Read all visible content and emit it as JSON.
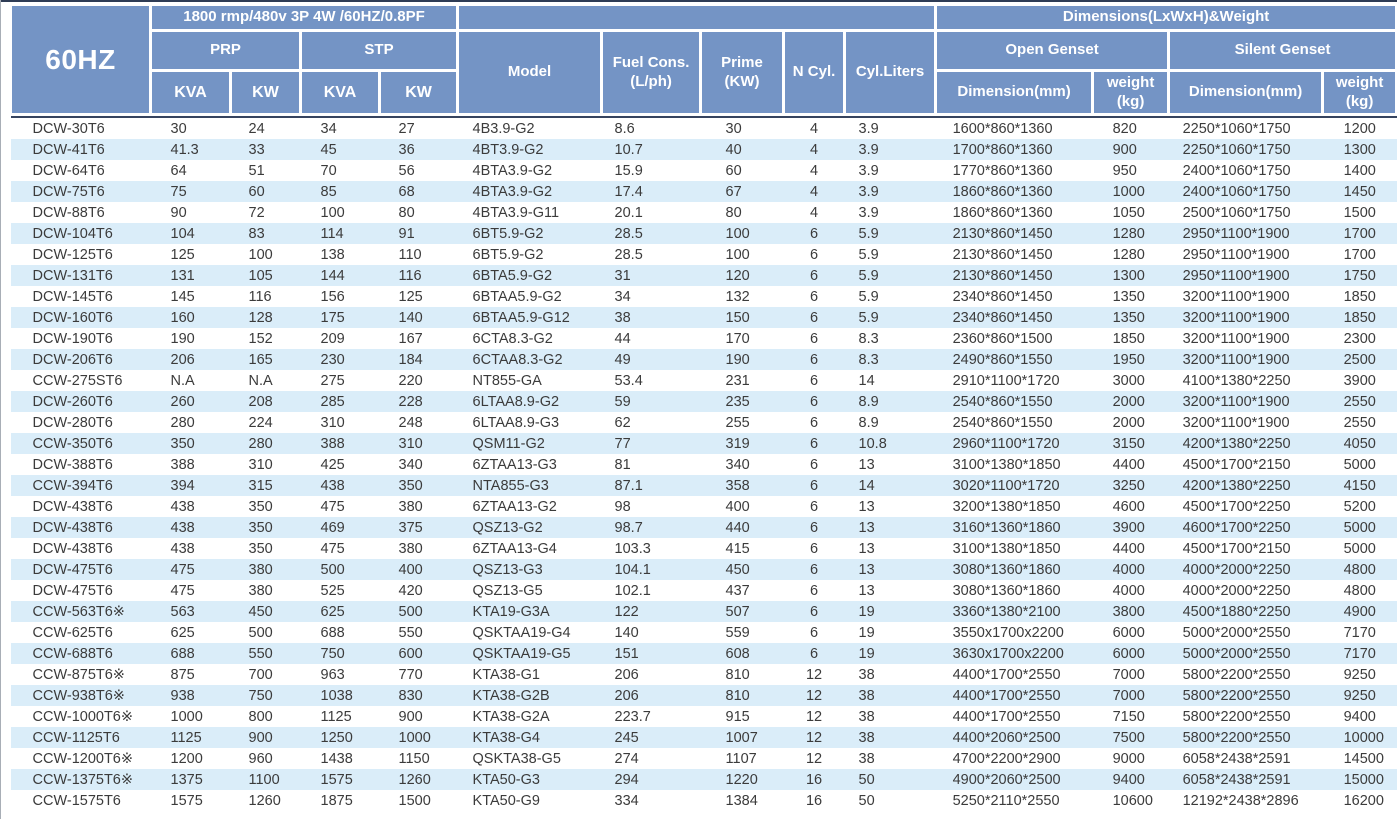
{
  "header": {
    "freq": "60HZ",
    "rating": "1800 rmp/480v 3P 4W /60HZ/0.8PF",
    "dims": "Dimensions(LxWxH)&Weight",
    "prp": "PRP",
    "stp": "STP",
    "open_genset": "Open Genset",
    "silent_genset": "Silent Genset",
    "kva": "KVA",
    "kw": "KW",
    "model": "Model",
    "fuel": "Fuel Cons.\n(L/ph)",
    "prime": "Prime\n(KW)",
    "ncyl": "N Cyl.",
    "cyl_liters": "Cyl.Liters",
    "dimension_mm": "Dimension(mm)",
    "weight_kg": "weight\n(kg)"
  },
  "colors": {
    "header_bg": "#7494C5",
    "stripe": "#DAEDF9",
    "divider": "#36445F",
    "text": "#3B3B3B"
  },
  "columns": [
    "model-name",
    "prp-kva",
    "prp-kw",
    "stp-kva",
    "stp-kw",
    "engine-model",
    "fuel-cons",
    "prime-kw",
    "n-cyl",
    "cyl-liters",
    "open-dimension",
    "open-weight",
    "silent-dimension",
    "silent-weight"
  ],
  "rows": [
    [
      "DCW-30T6",
      "30",
      "24",
      "34",
      "27",
      "4B3.9-G2",
      "8.6",
      "30",
      "4",
      "3.9",
      "1600*860*1360",
      "820",
      "2250*1060*1750",
      "1200"
    ],
    [
      "DCW-41T6",
      "41.3",
      "33",
      "45",
      "36",
      "4BT3.9-G2",
      "10.7",
      "40",
      "4",
      "3.9",
      "1700*860*1360",
      "900",
      "2250*1060*1750",
      "1300"
    ],
    [
      "DCW-64T6",
      "64",
      "51",
      "70",
      "56",
      "4BTA3.9-G2",
      "15.9",
      "60",
      "4",
      "3.9",
      "1770*860*1360",
      "950",
      "2400*1060*1750",
      "1400"
    ],
    [
      "DCW-75T6",
      "75",
      "60",
      "85",
      "68",
      "4BTA3.9-G2",
      "17.4",
      "67",
      "4",
      "3.9",
      "1860*860*1360",
      "1000",
      "2400*1060*1750",
      "1450"
    ],
    [
      "DCW-88T6",
      "90",
      "72",
      "100",
      "80",
      "4BTA3.9-G11",
      "20.1",
      "80",
      "4",
      "3.9",
      "1860*860*1360",
      "1050",
      "2500*1060*1750",
      "1500"
    ],
    [
      "DCW-104T6",
      "104",
      "83",
      "114",
      "91",
      "6BT5.9-G2",
      "28.5",
      "100",
      "6",
      "5.9",
      "2130*860*1450",
      "1280",
      "2950*1100*1900",
      "1700"
    ],
    [
      "DCW-125T6",
      "125",
      "100",
      "138",
      "110",
      "6BT5.9-G2",
      "28.5",
      "100",
      "6",
      "5.9",
      "2130*860*1450",
      "1280",
      "2950*1100*1900",
      "1700"
    ],
    [
      "DCW-131T6",
      "131",
      "105",
      "144",
      "116",
      "6BTA5.9-G2",
      "31",
      "120",
      "6",
      "5.9",
      "2130*860*1450",
      "1300",
      "2950*1100*1900",
      "1750"
    ],
    [
      "DCW-145T6",
      "145",
      "116",
      "156",
      "125",
      "6BTAA5.9-G2",
      "34",
      "132",
      "6",
      "5.9",
      "2340*860*1450",
      "1350",
      "3200*1100*1900",
      "1850"
    ],
    [
      "DCW-160T6",
      "160",
      "128",
      "175",
      "140",
      "6BTAA5.9-G12",
      "38",
      "150",
      "6",
      "5.9",
      "2340*860*1450",
      "1350",
      "3200*1100*1900",
      "1850"
    ],
    [
      "DCW-190T6",
      "190",
      "152",
      "209",
      "167",
      "6CTA8.3-G2",
      "44",
      "170",
      "6",
      "8.3",
      "2360*860*1500",
      "1850",
      "3200*1100*1900",
      "2300"
    ],
    [
      "DCW-206T6",
      "206",
      "165",
      "230",
      "184",
      "6CTAA8.3-G2",
      "49",
      "190",
      "6",
      "8.3",
      "2490*860*1550",
      "1950",
      "3200*1100*1900",
      "2500"
    ],
    [
      "CCW-275ST6",
      "N.A",
      "N.A",
      "275",
      "220",
      "NT855-GA",
      "53.4",
      "231",
      "6",
      "14",
      "2910*1100*1720",
      "3000",
      "4100*1380*2250",
      "3900"
    ],
    [
      "DCW-260T6",
      "260",
      "208",
      "285",
      "228",
      "6LTAA8.9-G2",
      "59",
      "235",
      "6",
      "8.9",
      "2540*860*1550",
      "2000",
      "3200*1100*1900",
      "2550"
    ],
    [
      "DCW-280T6",
      "280",
      "224",
      "310",
      "248",
      "6LTAA8.9-G3",
      "62",
      "255",
      "6",
      "8.9",
      "2540*860*1550",
      "2000",
      "3200*1100*1900",
      "2550"
    ],
    [
      "CCW-350T6",
      "350",
      "280",
      "388",
      "310",
      "QSM11-G2",
      "77",
      "319",
      "6",
      "10.8",
      "2960*1100*1720",
      "3150",
      "4200*1380*2250",
      "4050"
    ],
    [
      "DCW-388T6",
      "388",
      "310",
      "425",
      "340",
      "6ZTAA13-G3",
      "81",
      "340",
      "6",
      "13",
      "3100*1380*1850",
      "4400",
      "4500*1700*2150",
      "5000"
    ],
    [
      "CCW-394T6",
      "394",
      "315",
      "438",
      "350",
      "NTA855-G3",
      "87.1",
      "358",
      "6",
      "14",
      "3020*1100*1720",
      "3250",
      "4200*1380*2250",
      "4150"
    ],
    [
      "DCW-438T6",
      "438",
      "350",
      "475",
      "380",
      "6ZTAA13-G2",
      "98",
      "400",
      "6",
      "13",
      "3200*1380*1850",
      "4600",
      "4500*1700*2250",
      "5200"
    ],
    [
      "DCW-438T6",
      "438",
      "350",
      "469",
      "375",
      "QSZ13-G2",
      "98.7",
      "440",
      "6",
      "13",
      "3160*1360*1860",
      "3900",
      "4600*1700*2250",
      "5000"
    ],
    [
      "DCW-438T6",
      "438",
      "350",
      "475",
      "380",
      "6ZTAA13-G4",
      "103.3",
      "415",
      "6",
      "13",
      "3100*1380*1850",
      "4400",
      "4500*1700*2150",
      "5000"
    ],
    [
      "DCW-475T6",
      "475",
      "380",
      "500",
      "400",
      "QSZ13-G3",
      "104.1",
      "450",
      "6",
      "13",
      "3080*1360*1860",
      "4000",
      "4000*2000*2250",
      "4800"
    ],
    [
      "DCW-475T6",
      "475",
      "380",
      "525",
      "420",
      "QSZ13-G5",
      "102.1",
      "437",
      "6",
      "13",
      "3080*1360*1860",
      "4000",
      "4000*2000*2250",
      "4800"
    ],
    [
      "CCW-563T6※",
      "563",
      "450",
      "625",
      "500",
      "KTA19-G3A",
      "122",
      "507",
      "6",
      "19",
      "3360*1380*2100",
      "3800",
      "4500*1880*2250",
      "4900"
    ],
    [
      "CCW-625T6",
      "625",
      "500",
      "688",
      "550",
      "QSKTAA19-G4",
      "140",
      "559",
      "6",
      "19",
      "3550x1700x2200",
      "6000",
      "5000*2000*2550",
      "7170"
    ],
    [
      "CCW-688T6",
      "688",
      "550",
      "750",
      "600",
      "QSKTAA19-G5",
      "151",
      "608",
      "6",
      "19",
      "3630x1700x2200",
      "6000",
      "5000*2000*2550",
      "7170"
    ],
    [
      "CCW-875T6※",
      "875",
      "700",
      "963",
      "770",
      "KTA38-G1",
      "206",
      "810",
      "12",
      "38",
      "4400*1700*2550",
      "7000",
      "5800*2200*2550",
      "9250"
    ],
    [
      "CCW-938T6※",
      "938",
      "750",
      "1038",
      "830",
      "KTA38-G2B",
      "206",
      "810",
      "12",
      "38",
      "4400*1700*2550",
      "7000",
      "5800*2200*2550",
      "9250"
    ],
    [
      "CCW-1000T6※",
      "1000",
      "800",
      "1125",
      "900",
      "KTA38-G2A",
      "223.7",
      "915",
      "12",
      "38",
      "4400*1700*2550",
      "7150",
      "5800*2200*2550",
      "9400"
    ],
    [
      "CCW-1125T6",
      "1125",
      "900",
      "1250",
      "1000",
      "KTA38-G4",
      "245",
      "1007",
      "12",
      "38",
      "4400*2060*2500",
      "7500",
      "5800*2200*2550",
      "10000"
    ],
    [
      "CCW-1200T6※",
      "1200",
      "960",
      "1438",
      "1150",
      "QSKTA38-G5",
      "274",
      "1107",
      "12",
      "38",
      "4700*2200*2900",
      "9000",
      "6058*2438*2591",
      "14500"
    ],
    [
      "CCW-1375T6※",
      "1375",
      "1100",
      "1575",
      "1260",
      "KTA50-G3",
      "294",
      "1220",
      "16",
      "50",
      "4900*2060*2500",
      "9400",
      "6058*2438*2591",
      "15000"
    ],
    [
      "CCW-1575T6",
      "1575",
      "1260",
      "1875",
      "1500",
      "KTA50-G9",
      "334",
      "1384",
      "16",
      "50",
      "5250*2110*2550",
      "10600",
      "12192*2438*2896",
      "16200"
    ]
  ]
}
